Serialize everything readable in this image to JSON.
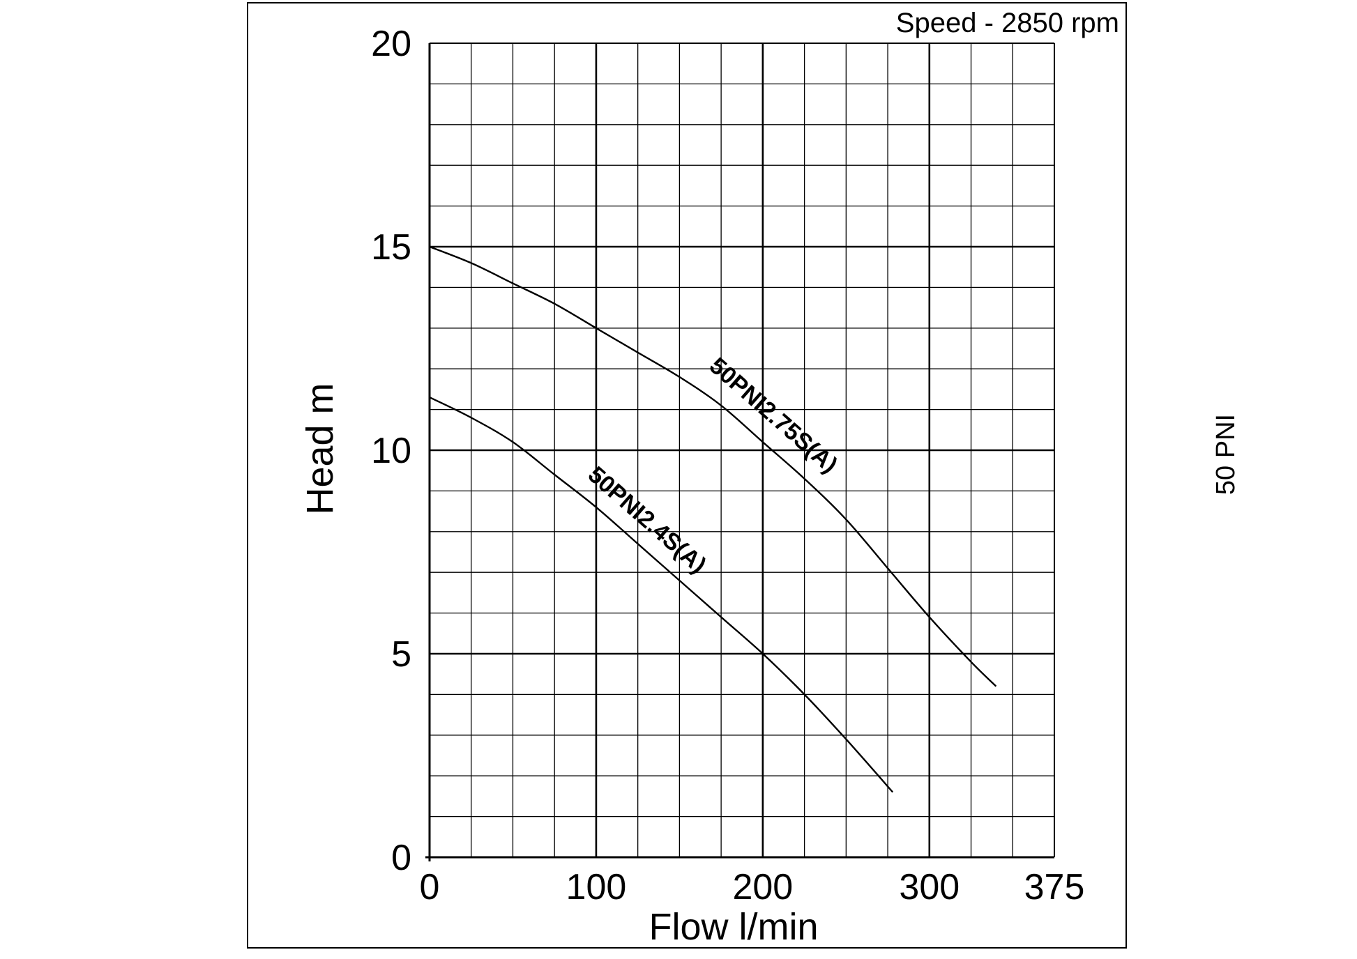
{
  "speed_label": "Speed - 2850 rpm",
  "side_label": "50 PNI",
  "chart_data": {
    "type": "line",
    "title": "",
    "xlabel": "Flow l/min",
    "ylabel": "Head m",
    "xlim": [
      0,
      375
    ],
    "ylim": [
      0,
      20
    ],
    "x_ticks": [
      0,
      100,
      200,
      300,
      375
    ],
    "y_ticks": [
      0,
      5,
      10,
      15,
      20
    ],
    "grid": true,
    "series": [
      {
        "name": "50PNI2.4S(A)",
        "x": [
          0,
          25,
          50,
          75,
          100,
          125,
          150,
          175,
          200,
          225,
          250,
          278
        ],
        "y": [
          11.3,
          10.8,
          10.2,
          9.4,
          8.6,
          7.7,
          6.8,
          5.9,
          5.0,
          4.0,
          2.9,
          1.6
        ]
      },
      {
        "name": "50PNI2.75S(A)",
        "x": [
          0,
          25,
          50,
          75,
          100,
          125,
          150,
          175,
          200,
          225,
          250,
          275,
          300,
          325,
          340
        ],
        "y": [
          15.0,
          14.6,
          14.1,
          13.6,
          13.0,
          12.4,
          11.8,
          11.1,
          10.2,
          9.3,
          8.3,
          7.1,
          5.9,
          4.8,
          4.2
        ]
      }
    ]
  }
}
